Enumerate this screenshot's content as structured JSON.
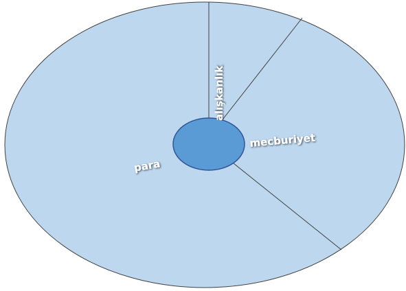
{
  "segments": [
    "alışkanlık",
    "mecburiyet",
    "para"
  ]
}
